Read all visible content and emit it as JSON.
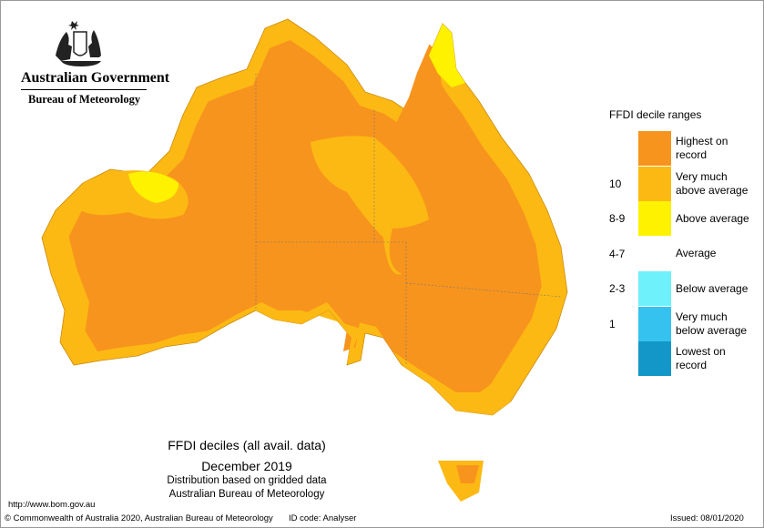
{
  "header": {
    "government": "Australian Government",
    "bureau": "Bureau of Meteorology"
  },
  "legend": {
    "title": "FFDI decile ranges",
    "items": [
      {
        "label": "Highest on record",
        "color": "#f7941d"
      },
      {
        "label": "Very much above average",
        "range": "10",
        "color": "#fdb913"
      },
      {
        "label": "Above average",
        "range": "8-9",
        "color": "#fff200"
      },
      {
        "label": "Average",
        "range": "4-7",
        "color": "#ffffff"
      },
      {
        "label": "Below average",
        "range": "2-3",
        "color": "#6ff1fc"
      },
      {
        "label": "Very much below average",
        "range": "1",
        "color": "#36c2ee"
      },
      {
        "label": "Lowest on record",
        "color": "#1396c8"
      }
    ]
  },
  "caption": {
    "title": "FFDI deciles (all avail. data)",
    "period": "December 2019",
    "line1": "Distribution based on gridded data",
    "line2": "Australian Bureau of Meteorology"
  },
  "footer": {
    "url": "http://www.bom.gov.au",
    "copyright": "© Commonwealth of Australia 2020, Australian Bureau of Meteorology",
    "id_code": "ID code: Analyser",
    "issued": "Issued: 08/01/2020"
  }
}
